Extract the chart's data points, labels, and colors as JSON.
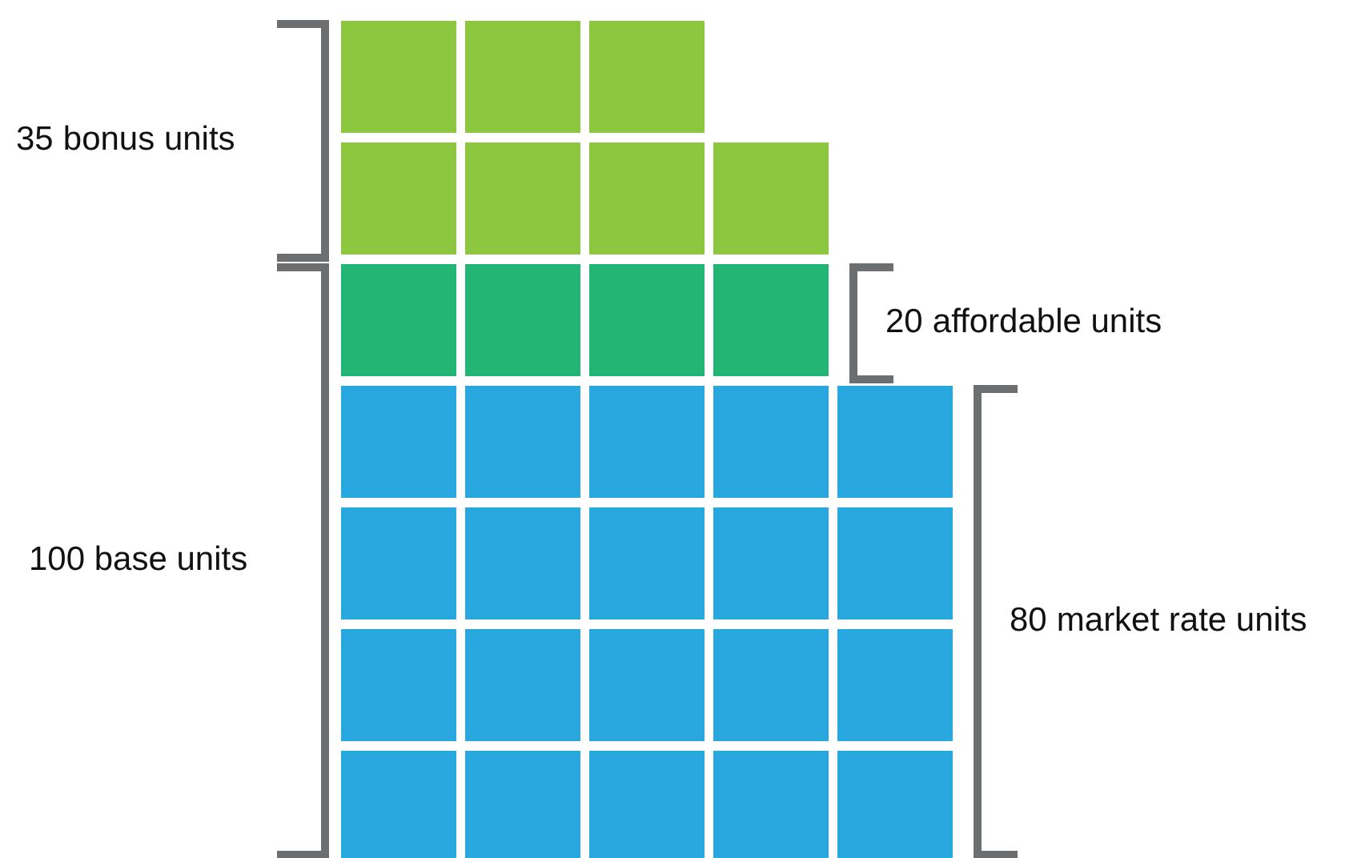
{
  "chart_data": {
    "type": "other",
    "categories": [
      "bonus units",
      "affordable units",
      "market rate units"
    ],
    "values": [
      35,
      20,
      80
    ],
    "data_labels": true,
    "colors": [
      "#8dc63f",
      "#22b573",
      "#29a8e0"
    ],
    "annotations": [
      "100 base units"
    ]
  }
}
